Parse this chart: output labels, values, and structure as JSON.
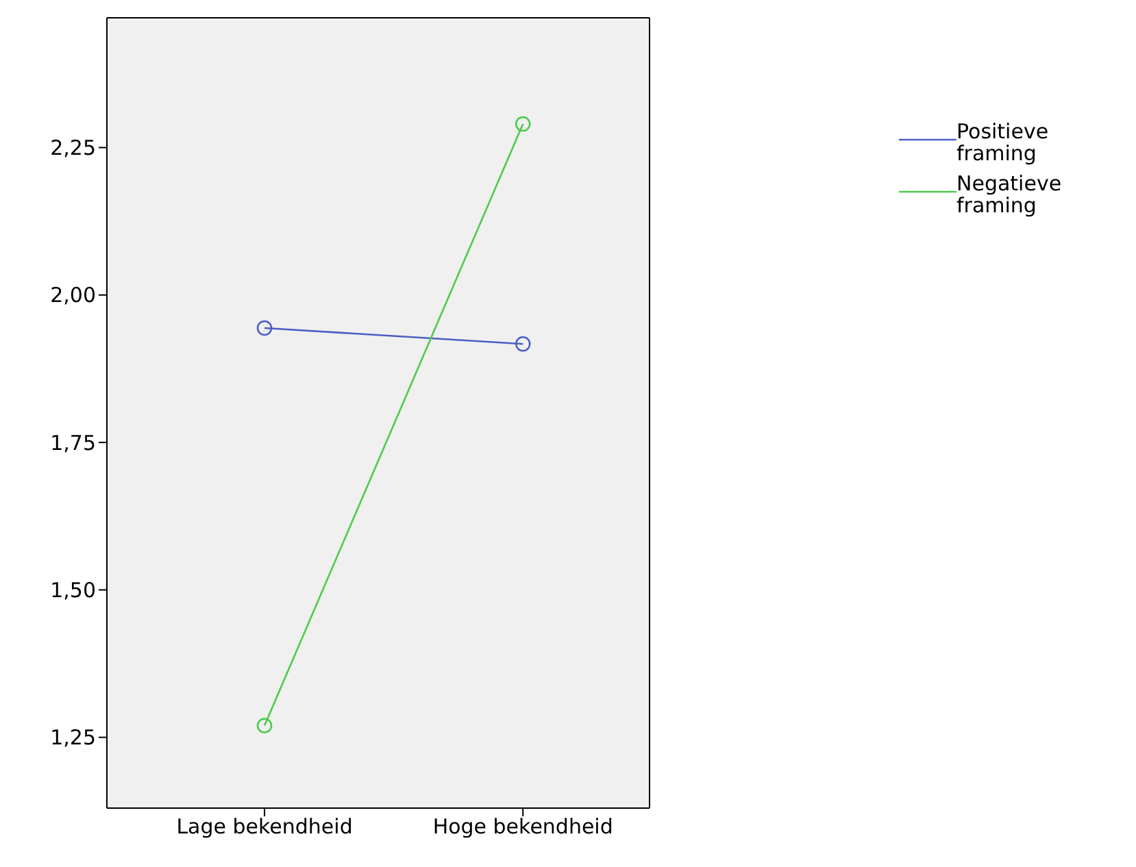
{
  "chart_data": {
    "type": "line",
    "categories": [
      "Lage bekendheid",
      "Hoge bekendheid"
    ],
    "series": [
      {
        "name": "Positieve framing",
        "color": "#4a5fc4",
        "values": [
          1.944,
          1.917
        ]
      },
      {
        "name": "Negatieve framing",
        "color": "#4ccc4c",
        "values": [
          1.27,
          2.29
        ]
      }
    ],
    "ylim": [
      1.13,
      2.47
    ],
    "yticks": [
      {
        "value": 1.25,
        "label": "1,25"
      },
      {
        "value": 1.5,
        "label": "1,50"
      },
      {
        "value": 1.75,
        "label": "1,75"
      },
      {
        "value": 2,
        "label": "2,00"
      },
      {
        "value": 2.25,
        "label": "2,25"
      }
    ],
    "legend": "top right",
    "marker": "circle",
    "line_style": "solid"
  }
}
